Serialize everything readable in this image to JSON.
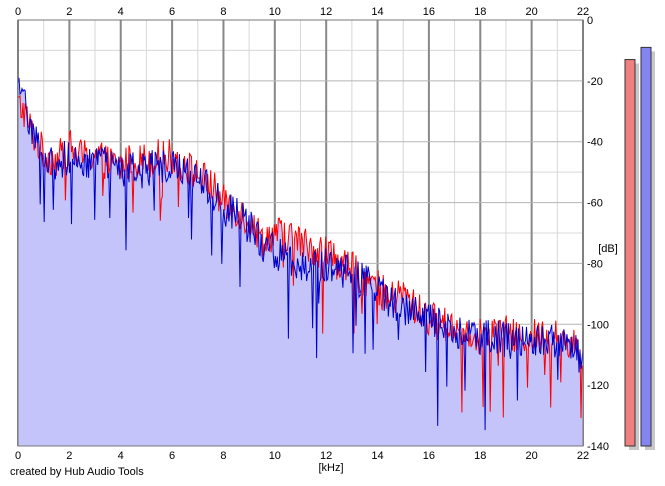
{
  "footer": {
    "credit": "created by Hub Audio Tools"
  },
  "chart_data": {
    "type": "line",
    "title": "",
    "xlabel": "[kHz]",
    "ylabel": "[dB]",
    "xlim": [
      0,
      22
    ],
    "ylim": [
      -140,
      0
    ],
    "x_ticks": [
      0,
      2,
      4,
      6,
      8,
      10,
      12,
      14,
      16,
      18,
      20,
      22
    ],
    "y_ticks": [
      0,
      -20,
      -40,
      -60,
      -80,
      -100,
      -120,
      -140
    ],
    "x_tick_labels": [
      "0",
      "2",
      "4",
      "6",
      "8",
      "10",
      "12",
      "14",
      "16",
      "18",
      "20",
      "22"
    ],
    "y_tick_labels": [
      "0",
      "-20",
      "-40",
      "-60",
      "-80",
      "-100",
      "-120",
      "-140"
    ],
    "grid": true,
    "legend": "none",
    "colors": {
      "fill": "#c4c4fb",
      "red": "#ff0000",
      "blue": "#0000cc",
      "grid_major": "#888888",
      "grid_minor": "#d8d8d8",
      "meter_red": "#f07f7f",
      "meter_blue": "#8585f2"
    },
    "x": [
      0,
      0.25,
      0.5,
      0.75,
      1,
      1.5,
      2,
      2.5,
      3,
      3.5,
      4,
      4.5,
      5,
      5.5,
      6,
      6.5,
      7,
      7.5,
      8,
      8.5,
      9,
      9.5,
      10,
      10.5,
      11,
      11.5,
      12,
      12.5,
      13,
      13.5,
      14,
      14.5,
      15,
      15.5,
      16,
      16.5,
      17,
      17.5,
      18,
      18.5,
      19,
      19.5,
      20,
      20.5,
      21,
      21.5,
      22
    ],
    "series": [
      {
        "color": "#ff0000",
        "values": [
          -28,
          -30,
          -36,
          -40,
          -44,
          -46,
          -42,
          -45,
          -44,
          -47,
          -48,
          -46,
          -46,
          -45,
          -45,
          -48,
          -51,
          -54,
          -60,
          -62,
          -66,
          -72,
          -70,
          -71,
          -73,
          -75,
          -76,
          -80,
          -82,
          -85,
          -88,
          -92,
          -90,
          -95,
          -98,
          -100,
          -101,
          -102,
          -104,
          -103,
          -103,
          -105,
          -104,
          -104,
          -104,
          -106,
          -110
        ]
      },
      {
        "color": "#0000cc",
        "values": [
          -24,
          -27,
          -34,
          -40,
          -45,
          -47,
          -45,
          -46,
          -47,
          -48,
          -50,
          -49,
          -49,
          -48,
          -47,
          -50,
          -53,
          -56,
          -62,
          -64,
          -68,
          -74,
          -76,
          -78,
          -80,
          -80,
          -81,
          -82,
          -84,
          -86,
          -89,
          -92,
          -94,
          -96,
          -99,
          -101,
          -102,
          -103,
          -105,
          -104,
          -105,
          -106,
          -105,
          -106,
          -105,
          -106,
          -112
        ]
      }
    ],
    "meters": [
      {
        "color": "#f07f7f",
        "value": -13
      },
      {
        "color": "#8585f2",
        "value": -9
      }
    ]
  }
}
